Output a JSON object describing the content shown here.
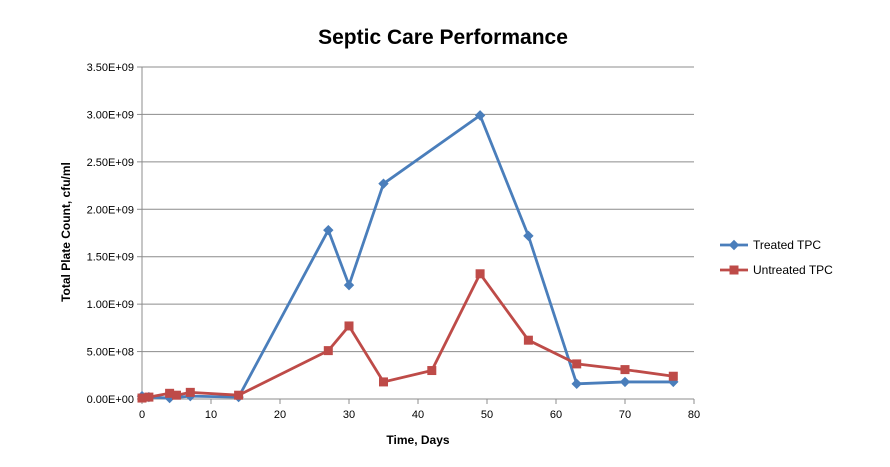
{
  "chart_data": {
    "type": "line",
    "title": "Septic Care Performance",
    "xlabel": "Time, Days",
    "ylabel": "Total Plate Count, cfu/ml",
    "xlim": [
      0,
      80
    ],
    "ylim": [
      0,
      3500000000
    ],
    "xticks": [
      0,
      10,
      20,
      30,
      40,
      50,
      60,
      70,
      80
    ],
    "xtick_labels": [
      "0",
      "10",
      "20",
      "30",
      "40",
      "50",
      "60",
      "70",
      "80"
    ],
    "yticks": [
      0,
      500000000,
      1000000000,
      1500000000,
      2000000000,
      2500000000,
      3000000000,
      3500000000
    ],
    "ytick_labels": [
      "0.00E+00",
      "5.00E+08",
      "1.00E+09",
      "1.50E+09",
      "2.00E+09",
      "2.50E+09",
      "3.00E+09",
      "3.50E+09"
    ],
    "grid": "horizontal",
    "legend_position": "right",
    "series": [
      {
        "name": "Treated TPC",
        "color": "#4a7ebb",
        "marker": "diamond",
        "x": [
          0,
          1,
          4,
          7,
          14,
          27,
          30,
          35,
          49,
          56,
          63,
          70,
          77
        ],
        "y": [
          30000000,
          20000000,
          10000000,
          30000000,
          20000000,
          1780000000,
          1200000000,
          2270000000,
          2990000000,
          1720000000,
          160000000,
          180000000,
          180000000
        ]
      },
      {
        "name": "Untreated TPC",
        "color": "#be4b48",
        "marker": "square",
        "x": [
          0,
          1,
          4,
          5,
          7,
          14,
          27,
          30,
          35,
          42,
          49,
          56,
          63,
          70,
          77
        ],
        "y": [
          10000000,
          20000000,
          60000000,
          40000000,
          70000000,
          40000000,
          510000000,
          770000000,
          180000000,
          300000000,
          1320000000,
          620000000,
          370000000,
          310000000,
          240000000
        ]
      }
    ]
  }
}
